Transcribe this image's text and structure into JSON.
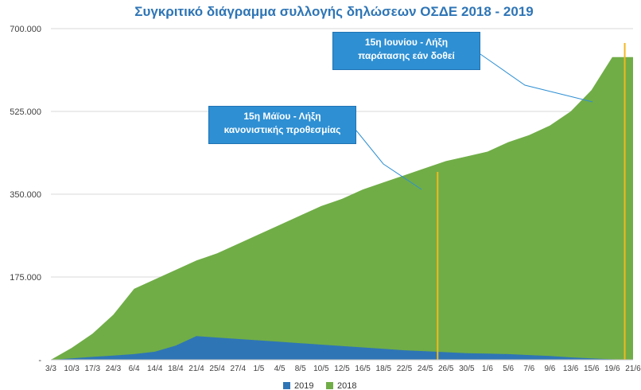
{
  "chart_data": {
    "type": "area",
    "title": "Συγκριτικό διάγραμμα συλλογής δηλώσεων ΟΣΔΕ 2018 - 2019",
    "xlabel": "",
    "ylabel": "",
    "ylim": [
      0,
      700000
    ],
    "y_ticks": [
      {
        "value": 0,
        "label": "-"
      },
      {
        "value": 175000,
        "label": "175.000"
      },
      {
        "value": 350000,
        "label": "350.000"
      },
      {
        "value": 525000,
        "label": "525.000"
      },
      {
        "value": 700000,
        "label": "700.000"
      }
    ],
    "categories": [
      "3/3",
      "10/3",
      "17/3",
      "24/3",
      "6/4",
      "14/4",
      "18/4",
      "21/4",
      "25/4",
      "27/4",
      "1/5",
      "4/5",
      "8/5",
      "10/5",
      "12/5",
      "16/5",
      "18/5",
      "22/5",
      "24/5",
      "26/5",
      "30/5",
      "1/6",
      "5/6",
      "7/6",
      "9/6",
      "13/6",
      "15/6",
      "19/6",
      "21/6"
    ],
    "grid": true,
    "legend_position": "bottom",
    "series": [
      {
        "name": "2018",
        "color": "#70ad47",
        "values": [
          0,
          25000,
          55000,
          95000,
          150000,
          170000,
          190000,
          210000,
          225000,
          245000,
          265000,
          285000,
          305000,
          325000,
          340000,
          360000,
          375000,
          390000,
          405000,
          420000,
          430000,
          440000,
          460000,
          475000,
          495000,
          525000,
          570000,
          640000,
          640000
        ]
      },
      {
        "name": "2019",
        "color": "#2e75b6",
        "values": [
          0,
          3000,
          6000,
          9000,
          12000,
          17000,
          30000,
          50000,
          47000,
          44000,
          41000,
          38000,
          35000,
          32000,
          29000,
          26000,
          23000,
          20000,
          18000,
          16000,
          14000,
          13000,
          12000,
          10000,
          8000,
          5000,
          3000,
          1000,
          0
        ]
      }
    ],
    "reference_lines": [
      {
        "x": "24/5",
        "color": "#f2b81e"
      },
      {
        "x": "19/6",
        "color": "#f2b81e"
      }
    ],
    "annotations": [
      {
        "lines": [
          "15η Ιουνίου - Λήξη",
          "παράτασης εάν δοθεί"
        ]
      },
      {
        "lines": [
          "15η Μάϊου - Λήξη",
          "κανονιστικής προθεσμίας"
        ]
      }
    ]
  }
}
